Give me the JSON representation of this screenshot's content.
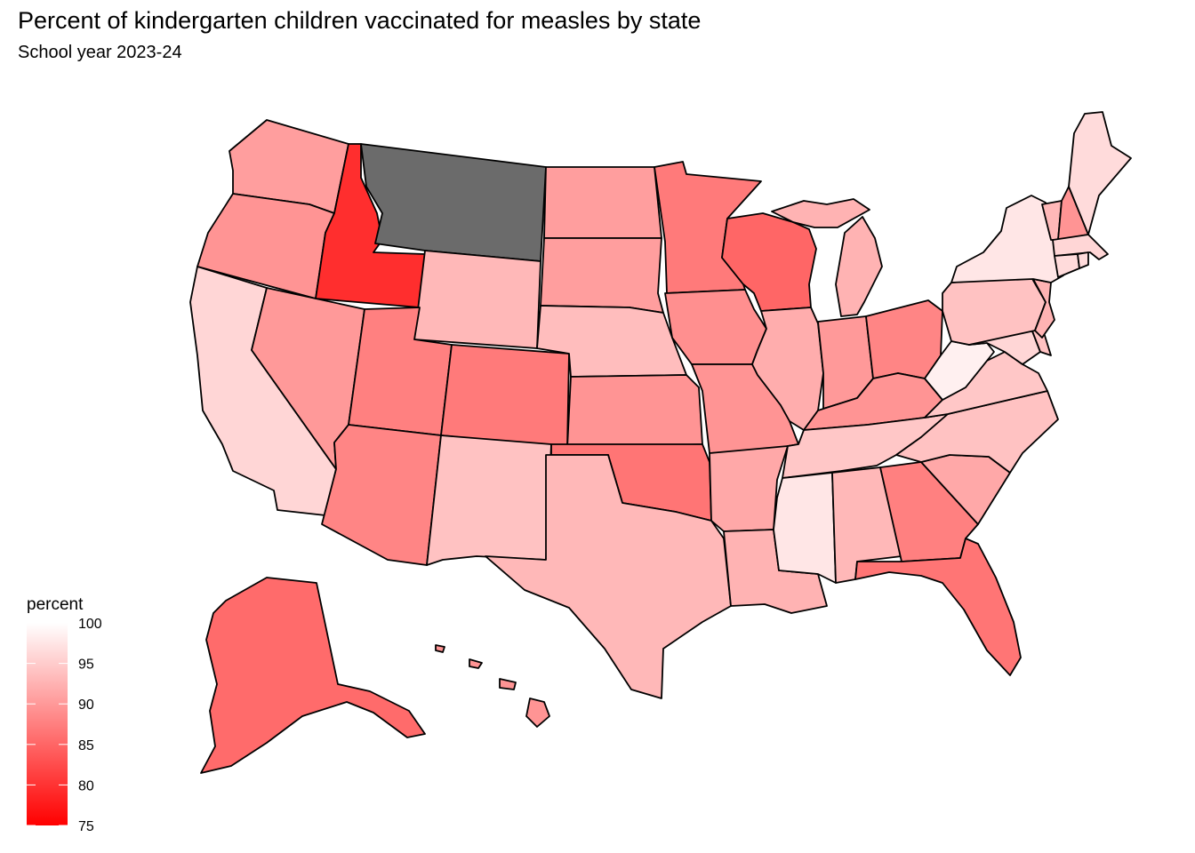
{
  "title": "Percent of kindergarten children vaccinated for measles by state",
  "subtitle": "School year 2023-24",
  "chart_data": {
    "type": "choropleth",
    "region": "United States",
    "variable": "percent",
    "missing_color": "#6b6b6b",
    "colorscale": {
      "low": 75,
      "high": 100,
      "low_color": "#ff0000",
      "high_color": "#ffffff"
    },
    "legend": {
      "title": "percent",
      "ticks": [
        100,
        95,
        90,
        85,
        80,
        75
      ],
      "placement": "bottom-left"
    },
    "states": [
      {
        "name": "Washington",
        "percent": 90.5
      },
      {
        "name": "Oregon",
        "percent": 89.5
      },
      {
        "name": "California",
        "percent": 96.0
      },
      {
        "name": "Nevada",
        "percent": 90.0
      },
      {
        "name": "Idaho",
        "percent": 79.5
      },
      {
        "name": "Montana",
        "percent": null
      },
      {
        "name": "Wyoming",
        "percent": 93.0
      },
      {
        "name": "Utah",
        "percent": 87.5
      },
      {
        "name": "Arizona",
        "percent": 88.0
      },
      {
        "name": "Colorado",
        "percent": 87.0
      },
      {
        "name": "New Mexico",
        "percent": 94.0
      },
      {
        "name": "North Dakota",
        "percent": 90.5
      },
      {
        "name": "South Dakota",
        "percent": 90.5
      },
      {
        "name": "Nebraska",
        "percent": 93.5
      },
      {
        "name": "Kansas",
        "percent": 89.5
      },
      {
        "name": "Oklahoma",
        "percent": 86.5
      },
      {
        "name": "Texas",
        "percent": 93.0
      },
      {
        "name": "Minnesota",
        "percent": 87.0
      },
      {
        "name": "Iowa",
        "percent": 89.0
      },
      {
        "name": "Missouri",
        "percent": 89.5
      },
      {
        "name": "Arkansas",
        "percent": 91.5
      },
      {
        "name": "Louisiana",
        "percent": 92.5
      },
      {
        "name": "Wisconsin",
        "percent": 85.0
      },
      {
        "name": "Illinois",
        "percent": 92.0
      },
      {
        "name": "Michigan",
        "percent": 92.5
      },
      {
        "name": "Indiana",
        "percent": 90.0
      },
      {
        "name": "Ohio",
        "percent": 88.0
      },
      {
        "name": "Kentucky",
        "percent": 89.5
      },
      {
        "name": "Tennessee",
        "percent": 94.5
      },
      {
        "name": "Mississippi",
        "percent": 97.5
      },
      {
        "name": "Alabama",
        "percent": 93.0
      },
      {
        "name": "Georgia",
        "percent": 87.5
      },
      {
        "name": "Florida",
        "percent": 86.5
      },
      {
        "name": "South Carolina",
        "percent": 91.5
      },
      {
        "name": "North Carolina",
        "percent": 94.0
      },
      {
        "name": "Virginia",
        "percent": 94.5
      },
      {
        "name": "West Virginia",
        "percent": 98.5
      },
      {
        "name": "Maryland",
        "percent": 96.0
      },
      {
        "name": "Delaware",
        "percent": 94.0
      },
      {
        "name": "Pennsylvania",
        "percent": 94.0
      },
      {
        "name": "New Jersey",
        "percent": 92.5
      },
      {
        "name": "New York",
        "percent": 97.5
      },
      {
        "name": "Connecticut",
        "percent": 96.5
      },
      {
        "name": "Rhode Island",
        "percent": 96.5
      },
      {
        "name": "Massachusetts",
        "percent": 96.0
      },
      {
        "name": "Vermont",
        "percent": 93.0
      },
      {
        "name": "New Hampshire",
        "percent": 89.5
      },
      {
        "name": "Maine",
        "percent": 96.5
      },
      {
        "name": "Alaska",
        "percent": 85.5
      },
      {
        "name": "Hawaii",
        "percent": 89.5
      }
    ]
  }
}
